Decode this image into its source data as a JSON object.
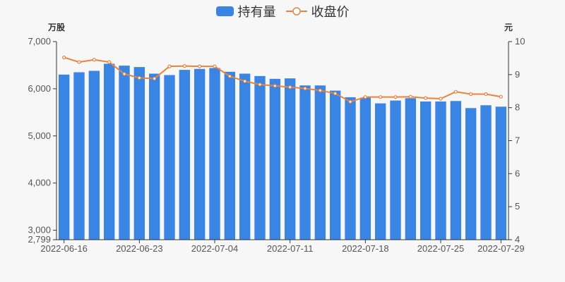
{
  "chart_data": {
    "type": "bar",
    "legend": {
      "bar_label": "持有量",
      "line_label": "收盘价",
      "placement": "top-center"
    },
    "units": {
      "left": "万股",
      "right": "元"
    },
    "colors": {
      "bar": "#3a84e4",
      "line": "#e8843e",
      "axis": "#333333",
      "background": "#f7f7f7"
    },
    "y_left": {
      "min": 2799,
      "max": 7000,
      "ticks": [
        "2,799",
        "3,000",
        "4,000",
        "5,000",
        "6,000",
        "7,000"
      ],
      "tick_values": [
        2799,
        3000,
        4000,
        5000,
        6000,
        7000
      ]
    },
    "y_right": {
      "min": 4,
      "max": 10,
      "ticks": [
        "4",
        "5",
        "6",
        "7",
        "8",
        "9",
        "10"
      ],
      "tick_values": [
        4,
        5,
        6,
        7,
        8,
        9,
        10
      ]
    },
    "x_tick_labels": [
      {
        "index": 0,
        "label": "2022-06-16"
      },
      {
        "index": 5,
        "label": "2022-06-23"
      },
      {
        "index": 10,
        "label": "2022-07-04"
      },
      {
        "index": 15,
        "label": "2022-07-11"
      },
      {
        "index": 20,
        "label": "2022-07-18"
      },
      {
        "index": 25,
        "label": "2022-07-25"
      },
      {
        "index": 29,
        "label": "2022-07-29"
      }
    ],
    "categories": [
      "2022-06-16",
      "2022-06-17",
      "2022-06-20",
      "2022-06-21",
      "2022-06-22",
      "2022-06-23",
      "2022-06-24",
      "2022-06-27",
      "2022-06-28",
      "2022-06-29",
      "2022-07-04",
      "2022-07-05",
      "2022-07-06",
      "2022-07-07",
      "2022-07-08",
      "2022-07-11",
      "2022-07-12",
      "2022-07-13",
      "2022-07-14",
      "2022-07-15",
      "2022-07-18",
      "2022-07-19",
      "2022-07-20",
      "2022-07-21",
      "2022-07-22",
      "2022-07-25",
      "2022-07-26",
      "2022-07-27",
      "2022-07-28",
      "2022-07-29"
    ],
    "series": [
      {
        "name": "持有量",
        "type": "bar",
        "axis": "left",
        "values": [
          6300,
          6350,
          6380,
          6530,
          6490,
          6460,
          6320,
          6290,
          6400,
          6420,
          6440,
          6360,
          6320,
          6270,
          6210,
          6220,
          6070,
          6070,
          5960,
          5820,
          5810,
          5690,
          5750,
          5800,
          5730,
          5730,
          5740,
          5590,
          5650,
          5620
        ]
      },
      {
        "name": "收盘价",
        "type": "line",
        "axis": "right",
        "values": [
          9.52,
          9.38,
          9.45,
          9.38,
          9.02,
          8.9,
          8.88,
          9.25,
          9.26,
          9.25,
          9.25,
          8.95,
          8.8,
          8.7,
          8.66,
          8.62,
          8.58,
          8.52,
          8.43,
          8.18,
          8.32,
          8.32,
          8.32,
          8.33,
          8.29,
          8.27,
          8.48,
          8.41,
          8.41,
          8.33
        ]
      }
    ],
    "grid": false
  }
}
